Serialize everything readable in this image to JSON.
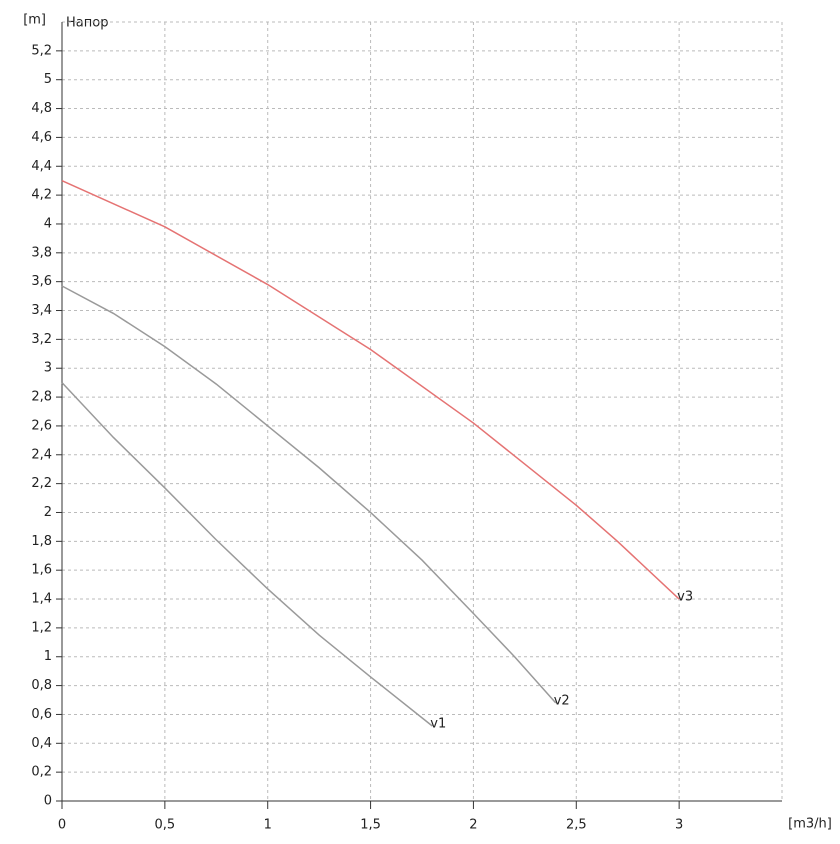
{
  "chart_data": {
    "type": "line",
    "title": "Напор",
    "y_label": "[m]",
    "x_label": "[m3/h]",
    "xlim": [
      0,
      3.5
    ],
    "ylim": [
      0,
      5.4
    ],
    "grid": true,
    "xticks": [
      0,
      {
        "value": 0.5,
        "label": "0,5"
      },
      1,
      {
        "value": 1.5,
        "label": "1,5"
      },
      2,
      {
        "value": 2.5,
        "label": "2,5"
      },
      3
    ],
    "yticks": [
      0,
      {
        "value": 0.2,
        "label": "0,2"
      },
      {
        "value": 0.4,
        "label": "0,4"
      },
      {
        "value": 0.6,
        "label": "0,6"
      },
      {
        "value": 0.8,
        "label": "0,8"
      },
      1,
      {
        "value": 1.2,
        "label": "1,2"
      },
      {
        "value": 1.4,
        "label": "1,4"
      },
      {
        "value": 1.6,
        "label": "1,6"
      },
      {
        "value": 1.8,
        "label": "1,8"
      },
      2,
      {
        "value": 2.2,
        "label": "2,2"
      },
      {
        "value": 2.4,
        "label": "2,4"
      },
      {
        "value": 2.6,
        "label": "2,6"
      },
      {
        "value": 2.8,
        "label": "2,8"
      },
      3,
      {
        "value": 3.2,
        "label": "3,2"
      },
      {
        "value": 3.4,
        "label": "3,4"
      },
      {
        "value": 3.6,
        "label": "3,6"
      },
      {
        "value": 3.8,
        "label": "3,8"
      },
      4,
      {
        "value": 4.2,
        "label": "4,2"
      },
      {
        "value": 4.4,
        "label": "4,4"
      },
      {
        "value": 4.6,
        "label": "4,6"
      },
      {
        "value": 4.8,
        "label": "4,8"
      },
      5,
      {
        "value": 5.2,
        "label": "5,2"
      }
    ],
    "series": [
      {
        "name": "v1",
        "color": "#9a9a9a",
        "x": [
          0,
          0.25,
          0.5,
          0.75,
          1,
          1.25,
          1.5,
          1.8
        ],
        "values": [
          2.9,
          2.52,
          2.17,
          1.81,
          1.47,
          1.15,
          0.86,
          0.52
        ]
      },
      {
        "name": "v2",
        "color": "#9a9a9a",
        "x": [
          0,
          0.25,
          0.5,
          0.75,
          1,
          1.25,
          1.5,
          1.75,
          2,
          2.2,
          2.4
        ],
        "values": [
          3.57,
          3.38,
          3.15,
          2.89,
          2.6,
          2.31,
          2.0,
          1.67,
          1.3,
          1.0,
          0.68
        ]
      },
      {
        "name": "v3",
        "color": "#e57373",
        "x": [
          0,
          0.5,
          1,
          1.5,
          2,
          2.5,
          2.7,
          3
        ],
        "values": [
          4.3,
          3.98,
          3.58,
          3.13,
          2.62,
          2.05,
          1.8,
          1.4
        ]
      }
    ]
  }
}
